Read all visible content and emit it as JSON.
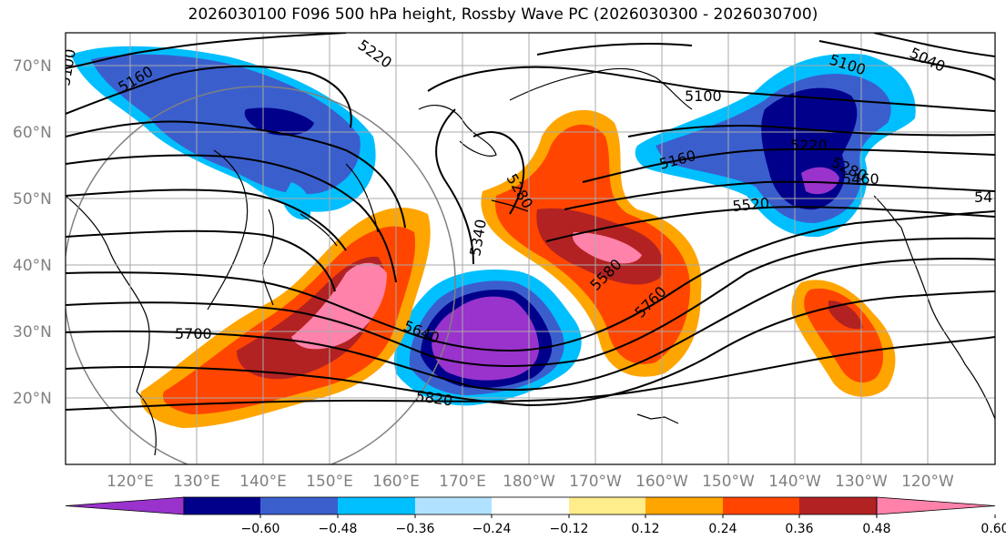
{
  "title": "2026030100 F096 500 hPa height, Rossby Wave PC (2026030300 - 2026030700)",
  "map": {
    "lat_labels": [
      "70°N",
      "60°N",
      "50°N",
      "40°N",
      "30°N",
      "20°N"
    ],
    "lon_labels": [
      "120°E",
      "130°E",
      "140°E",
      "150°E",
      "160°E",
      "170°E",
      "180°W",
      "170°W",
      "160°W",
      "150°W",
      "140°W",
      "130°W",
      "120°W"
    ],
    "contour_labels": [
      "5160",
      "5100",
      "5220",
      "5100",
      "5040",
      "5100",
      "5160",
      "5220",
      "5280",
      "5460",
      "5520",
      "5280",
      "5340",
      "5580",
      "5760",
      "5640",
      "5700",
      "5820",
      "54"
    ]
  },
  "colorbar": {
    "tick_labels": [
      "−0.60",
      "−0.48",
      "−0.36",
      "−0.24",
      "−0.12",
      "0.12",
      "0.24",
      "0.36",
      "0.48",
      "0.60"
    ],
    "colors": [
      "#9933cc",
      "#00008b",
      "#3a5fcd",
      "#00bfff",
      "#b0e2ff",
      "#ffffff",
      "#ffec8b",
      "#ffa500",
      "#ff4500",
      "#b22222",
      "#ff82ab"
    ]
  }
}
